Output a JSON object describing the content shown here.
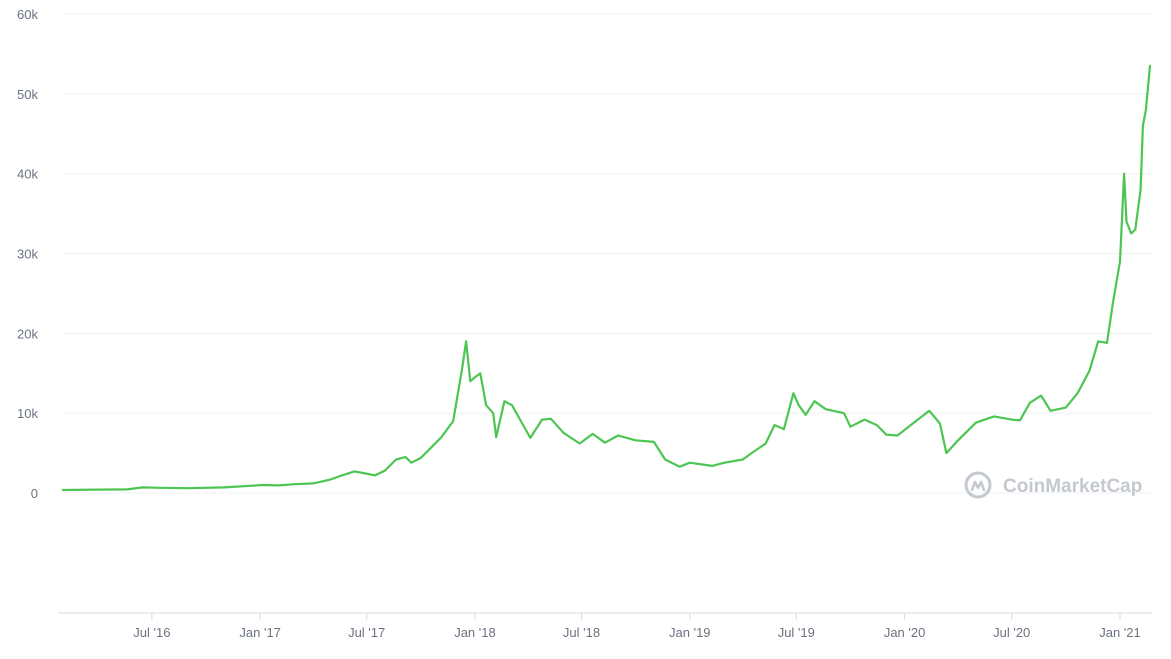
{
  "chart_data": {
    "type": "line",
    "title": "",
    "xlabel": "",
    "ylabel": "",
    "x_range": [
      "2016-02-01",
      "2021-02-21"
    ],
    "ylim": [
      -15000,
      60000
    ],
    "grid": true,
    "y_ticks": [
      {
        "value": 0,
        "label": "0"
      },
      {
        "value": 10000,
        "label": "10k"
      },
      {
        "value": 20000,
        "label": "20k"
      },
      {
        "value": 30000,
        "label": "30k"
      },
      {
        "value": 40000,
        "label": "40k"
      },
      {
        "value": 50000,
        "label": "50k"
      },
      {
        "value": 60000,
        "label": "60k"
      }
    ],
    "x_ticks": [
      {
        "date": "2016-07-01",
        "label": "Jul '16"
      },
      {
        "date": "2017-01-01",
        "label": "Jan '17"
      },
      {
        "date": "2017-07-01",
        "label": "Jul '17"
      },
      {
        "date": "2018-01-01",
        "label": "Jan '18"
      },
      {
        "date": "2018-07-01",
        "label": "Jul '18"
      },
      {
        "date": "2019-01-01",
        "label": "Jan '19"
      },
      {
        "date": "2019-07-01",
        "label": "Jul '19"
      },
      {
        "date": "2020-01-01",
        "label": "Jan '20"
      },
      {
        "date": "2020-07-01",
        "label": "Jul '20"
      },
      {
        "date": "2021-01-01",
        "label": "Jan '21"
      }
    ],
    "series": [
      {
        "color": "#4cc552",
        "points": [
          [
            "2016-02-01",
            370
          ],
          [
            "2016-04-01",
            420
          ],
          [
            "2016-05-20",
            450
          ],
          [
            "2016-06-15",
            700
          ],
          [
            "2016-07-15",
            650
          ],
          [
            "2016-09-01",
            600
          ],
          [
            "2016-11-01",
            700
          ],
          [
            "2016-12-15",
            900
          ],
          [
            "2017-01-05",
            1000
          ],
          [
            "2017-02-01",
            950
          ],
          [
            "2017-03-01",
            1100
          ],
          [
            "2017-04-01",
            1200
          ],
          [
            "2017-05-01",
            1700
          ],
          [
            "2017-05-20",
            2200
          ],
          [
            "2017-06-10",
            2700
          ],
          [
            "2017-06-25",
            2500
          ],
          [
            "2017-07-15",
            2200
          ],
          [
            "2017-08-01",
            2800
          ],
          [
            "2017-08-20",
            4200
          ],
          [
            "2017-09-05",
            4500
          ],
          [
            "2017-09-15",
            3800
          ],
          [
            "2017-10-01",
            4400
          ],
          [
            "2017-10-20",
            5800
          ],
          [
            "2017-11-05",
            7000
          ],
          [
            "2017-11-25",
            9000
          ],
          [
            "2017-12-10",
            15500
          ],
          [
            "2017-12-17",
            19000
          ],
          [
            "2017-12-24",
            14000
          ],
          [
            "2018-01-01",
            14500
          ],
          [
            "2018-01-10",
            15000
          ],
          [
            "2018-01-20",
            11000
          ],
          [
            "2018-02-01",
            10000
          ],
          [
            "2018-02-06",
            7000
          ],
          [
            "2018-02-20",
            11500
          ],
          [
            "2018-03-05",
            11000
          ],
          [
            "2018-03-20",
            9000
          ],
          [
            "2018-04-05",
            6900
          ],
          [
            "2018-04-25",
            9200
          ],
          [
            "2018-05-10",
            9300
          ],
          [
            "2018-06-01",
            7500
          ],
          [
            "2018-06-28",
            6200
          ],
          [
            "2018-07-20",
            7400
          ],
          [
            "2018-08-10",
            6300
          ],
          [
            "2018-09-01",
            7200
          ],
          [
            "2018-10-01",
            6600
          ],
          [
            "2018-11-01",
            6400
          ],
          [
            "2018-11-20",
            4200
          ],
          [
            "2018-12-15",
            3300
          ],
          [
            "2019-01-01",
            3800
          ],
          [
            "2019-02-08",
            3400
          ],
          [
            "2019-03-01",
            3800
          ],
          [
            "2019-04-01",
            4200
          ],
          [
            "2019-04-20",
            5200
          ],
          [
            "2019-05-10",
            6200
          ],
          [
            "2019-05-25",
            8500
          ],
          [
            "2019-06-10",
            8000
          ],
          [
            "2019-06-26",
            12500
          ],
          [
            "2019-07-05",
            11000
          ],
          [
            "2019-07-17",
            9800
          ],
          [
            "2019-08-01",
            11500
          ],
          [
            "2019-08-20",
            10500
          ],
          [
            "2019-09-20",
            10000
          ],
          [
            "2019-10-01",
            8300
          ],
          [
            "2019-10-25",
            9200
          ],
          [
            "2019-11-15",
            8500
          ],
          [
            "2019-12-01",
            7300
          ],
          [
            "2019-12-20",
            7200
          ],
          [
            "2020-01-15",
            8700
          ],
          [
            "2020-02-12",
            10300
          ],
          [
            "2020-03-01",
            8700
          ],
          [
            "2020-03-12",
            5000
          ],
          [
            "2020-04-01",
            6600
          ],
          [
            "2020-05-01",
            8800
          ],
          [
            "2020-06-01",
            9600
          ],
          [
            "2020-07-01",
            9200
          ],
          [
            "2020-07-15",
            9100
          ],
          [
            "2020-08-01",
            11300
          ],
          [
            "2020-08-20",
            12200
          ],
          [
            "2020-09-05",
            10300
          ],
          [
            "2020-10-01",
            10700
          ],
          [
            "2020-10-21",
            12500
          ],
          [
            "2020-11-10",
            15300
          ],
          [
            "2020-11-25",
            19000
          ],
          [
            "2020-12-10",
            18800
          ],
          [
            "2020-12-20",
            23800
          ],
          [
            "2021-01-01",
            29000
          ],
          [
            "2021-01-08",
            40000
          ],
          [
            "2021-01-12",
            34000
          ],
          [
            "2021-01-20",
            32500
          ],
          [
            "2021-01-27",
            33000
          ],
          [
            "2021-02-05",
            38000
          ],
          [
            "2021-02-09",
            46000
          ],
          [
            "2021-02-14",
            48000
          ],
          [
            "2021-02-21",
            53500
          ]
        ]
      }
    ]
  },
  "watermark": {
    "text": "CoinMarketCap",
    "icon": "coinmarketcap-logo-icon"
  }
}
